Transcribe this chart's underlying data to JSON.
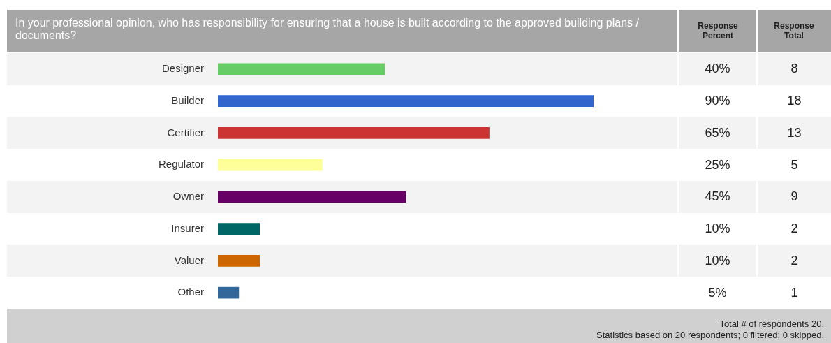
{
  "chart_data": {
    "type": "bar",
    "orientation": "horizontal",
    "title": "In your professional opinion, who has responsibility for ensuring that a house is built according to the approved building plans / documents?",
    "categories": [
      "Designer",
      "Builder",
      "Certifier",
      "Regulator",
      "Owner",
      "Insurer",
      "Valuer",
      "Other"
    ],
    "values": [
      40,
      90,
      65,
      25,
      45,
      10,
      10,
      5
    ],
    "colors": [
      "#66cc66",
      "#3366cc",
      "#cc3333",
      "#ffff99",
      "#660066",
      "#006666",
      "#cc6600",
      "#336699"
    ],
    "value_labels": [
      "40%",
      "90%",
      "65%",
      "25%",
      "45%",
      "10%",
      "10%",
      "5%"
    ],
    "tick_labels": "y",
    "annotations": [
      "Response Percent",
      "Response Total",
      "8",
      "18",
      "13",
      "5",
      "9",
      "2",
      "2",
      "1",
      "Total # of respondents 20.",
      "Statistics based on 20 respondents; 0 filtered; 0 skipped."
    ]
  }
}
